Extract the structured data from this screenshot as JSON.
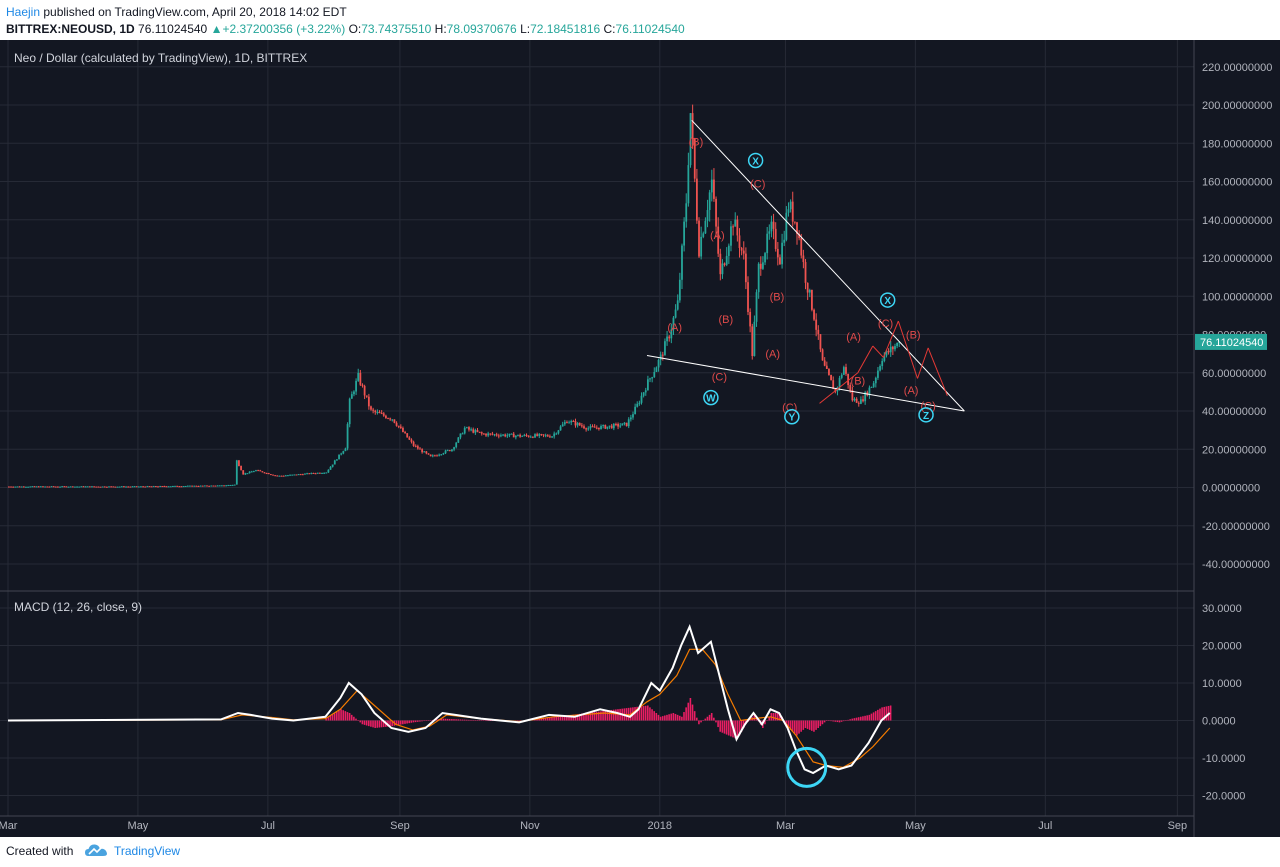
{
  "header": {
    "author": "Haejin",
    "published_text": " published on TradingView.com, April 20, 2018 14:02 EDT",
    "symbol": "BITTREX:NEOUSD, 1D",
    "last": "76.11024540",
    "change": "+2.37200356 (+3.22%)",
    "o_label": "O:",
    "o_value": "73.74375510",
    "h_label": "H:",
    "h_value": "78.09370676",
    "l_label": "L:",
    "l_value": "72.18451816",
    "c_label": "C:",
    "c_value": "76.11024540"
  },
  "footer": {
    "created_with": "Created with",
    "brand": "TradingView"
  },
  "colors": {
    "background": "#131722",
    "up": "#26a69a",
    "down": "#ef5350",
    "wave_label": "#e04a4a",
    "circle_label": "#3dd6f5",
    "macd_line": "#ffffff",
    "signal_line": "#f57c00",
    "histogram": "#e91e63"
  },
  "chart_data": [
    {
      "type": "candlestick",
      "title": "Neo / Dollar (calculated by TradingView), 1D, BITTREX",
      "ylim": [
        -50,
        230
      ],
      "y_ticks": [
        "220.00000000",
        "200.00000000",
        "180.00000000",
        "160.00000000",
        "140.00000000",
        "120.00000000",
        "100.00000000",
        "80.00000000",
        "60.00000000",
        "40.00000000",
        "20.00000000",
        "0.00000000",
        "-20.00000000",
        "-40.00000000"
      ],
      "y_tick_values": [
        220,
        200,
        180,
        160,
        140,
        120,
        100,
        80,
        60,
        40,
        20,
        0,
        -20,
        -40
      ],
      "last_price_label": "76.11024540",
      "last_price": 76.11,
      "x_ticks": [
        "Mar",
        "May",
        "Jul",
        "Sep",
        "Nov",
        "2018",
        "Mar",
        "May",
        "Jul",
        "Sep"
      ],
      "x_tick_days": [
        0,
        61,
        122,
        184,
        245,
        306,
        365,
        426,
        487,
        549
      ],
      "price_path": [
        [
          0,
          0.5
        ],
        [
          60,
          0.5
        ],
        [
          100,
          1
        ],
        [
          106,
          1.5
        ],
        [
          107,
          14
        ],
        [
          110,
          7
        ],
        [
          116,
          9
        ],
        [
          126,
          6
        ],
        [
          149,
          8
        ],
        [
          158,
          21
        ],
        [
          160,
          45
        ],
        [
          164,
          58
        ],
        [
          170,
          40
        ],
        [
          180,
          36
        ],
        [
          190,
          22
        ],
        [
          198,
          16
        ],
        [
          208,
          20
        ],
        [
          214,
          31
        ],
        [
          222,
          28
        ],
        [
          240,
          27
        ],
        [
          255,
          27
        ],
        [
          262,
          35
        ],
        [
          272,
          31
        ],
        [
          283,
          32
        ],
        [
          290,
          33
        ],
        [
          295,
          43
        ],
        [
          300,
          55
        ],
        [
          306,
          68
        ],
        [
          310,
          80
        ],
        [
          314,
          96
        ],
        [
          318,
          150
        ],
        [
          320,
          196
        ],
        [
          324,
          125
        ],
        [
          330,
          160
        ],
        [
          334,
          110
        ],
        [
          340,
          140
        ],
        [
          345,
          120
        ],
        [
          349,
          70
        ],
        [
          352,
          115
        ],
        [
          358,
          135
        ],
        [
          362,
          120
        ],
        [
          366,
          148
        ],
        [
          370,
          137
        ],
        [
          374,
          110
        ],
        [
          378,
          90
        ],
        [
          382,
          65
        ],
        [
          388,
          50
        ],
        [
          392,
          63
        ],
        [
          396,
          46
        ],
        [
          400,
          45
        ],
        [
          406,
          55
        ],
        [
          410,
          68
        ],
        [
          414,
          72
        ],
        [
          418,
          76
        ]
      ],
      "trendlines": [
        {
          "from": [
            321,
            192
          ],
          "to": [
            449,
            40
          ]
        },
        {
          "from": [
            300,
            69
          ],
          "to": [
            449,
            40
          ]
        },
        {
          "from": [
            381,
            44
          ],
          "to": [
            399,
            60
          ]
        },
        {
          "from": [
            399,
            60
          ],
          "to": [
            406,
            74
          ]
        },
        {
          "from": [
            406,
            74
          ],
          "to": [
            411,
            68
          ]
        },
        {
          "from": [
            411,
            68
          ],
          "to": [
            418,
            87
          ]
        },
        {
          "from": [
            418,
            87
          ],
          "to": [
            427,
            57
          ]
        },
        {
          "from": [
            427,
            57
          ],
          "to": [
            432,
            73
          ]
        },
        {
          "from": [
            432,
            73
          ],
          "to": [
            441,
            48
          ]
        }
      ],
      "wave_labels": [
        {
          "text": "(B)",
          "day": 323,
          "price": 181
        },
        {
          "text": "(C)",
          "day": 352,
          "price": 159
        },
        {
          "text": "(A)",
          "day": 333,
          "price": 132
        },
        {
          "text": "(A)",
          "day": 313,
          "price": 84
        },
        {
          "text": "(B)",
          "day": 337,
          "price": 88
        },
        {
          "text": "(C)",
          "day": 334,
          "price": 58
        },
        {
          "text": "(B)",
          "day": 361,
          "price": 100
        },
        {
          "text": "(A)",
          "day": 359,
          "price": 70
        },
        {
          "text": "(C)",
          "day": 367,
          "price": 42
        },
        {
          "text": "(A)",
          "day": 397,
          "price": 79
        },
        {
          "text": "(B)",
          "day": 399,
          "price": 56
        },
        {
          "text": "(C)",
          "day": 412,
          "price": 86
        },
        {
          "text": "(B)",
          "day": 425,
          "price": 80
        },
        {
          "text": "(A)",
          "day": 424,
          "price": 51
        },
        {
          "text": "(C)",
          "day": 432,
          "price": 43
        }
      ],
      "circle_labels": [
        {
          "text": "X",
          "day": 351,
          "price": 171
        },
        {
          "text": "W",
          "day": 330,
          "price": 47
        },
        {
          "text": "Y",
          "day": 368,
          "price": 37
        },
        {
          "text": "X",
          "day": 413,
          "price": 98
        },
        {
          "text": "Z",
          "day": 431,
          "price": 38
        }
      ]
    },
    {
      "type": "line",
      "title": "MACD (12, 26, close, 9)",
      "ylim": [
        -22,
        33
      ],
      "y_ticks": [
        "30.0000",
        "20.0000",
        "10.0000",
        "0.0000",
        "-10.0000",
        "-20.0000"
      ],
      "y_tick_values": [
        30,
        20,
        10,
        0,
        -10,
        -20
      ],
      "series": [
        {
          "name": "MACD",
          "values": [
            [
              0,
              0
            ],
            [
              100,
              0.3
            ],
            [
              108,
              2
            ],
            [
              114,
              1.5
            ],
            [
              124,
              0.5
            ],
            [
              134,
              0
            ],
            [
              149,
              1
            ],
            [
              156,
              6
            ],
            [
              160,
              10
            ],
            [
              166,
              7
            ],
            [
              172,
              2
            ],
            [
              180,
              -2
            ],
            [
              188,
              -3
            ],
            [
              196,
              -2
            ],
            [
              204,
              2
            ],
            [
              210,
              1.5
            ],
            [
              222,
              0.5
            ],
            [
              240,
              -0.5
            ],
            [
              254,
              1.5
            ],
            [
              266,
              1
            ],
            [
              278,
              3
            ],
            [
              286,
              2
            ],
            [
              292,
              1
            ],
            [
              296,
              3
            ],
            [
              302,
              10
            ],
            [
              306,
              8
            ],
            [
              312,
              14
            ],
            [
              316,
              20
            ],
            [
              320,
              25
            ],
            [
              324,
              18
            ],
            [
              330,
              21
            ],
            [
              334,
              12
            ],
            [
              338,
              3
            ],
            [
              342,
              -5
            ],
            [
              346,
              -1
            ],
            [
              350,
              2
            ],
            [
              354,
              -1
            ],
            [
              358,
              3
            ],
            [
              362,
              2
            ],
            [
              366,
              -2
            ],
            [
              370,
              -8
            ],
            [
              374,
              -13
            ],
            [
              378,
              -14
            ],
            [
              384,
              -12
            ],
            [
              390,
              -13
            ],
            [
              396,
              -12
            ],
            [
              404,
              -6
            ],
            [
              410,
              0
            ],
            [
              414,
              2
            ]
          ]
        },
        {
          "name": "Signal",
          "values": [
            [
              0,
              0
            ],
            [
              100,
              0.2
            ],
            [
              110,
              1.5
            ],
            [
              124,
              0.8
            ],
            [
              134,
              0.2
            ],
            [
              149,
              0.5
            ],
            [
              156,
              3
            ],
            [
              164,
              8
            ],
            [
              172,
              4
            ],
            [
              182,
              -1
            ],
            [
              190,
              -2.5
            ],
            [
              198,
              -1.5
            ],
            [
              206,
              1.5
            ],
            [
              222,
              0.5
            ],
            [
              240,
              -0.3
            ],
            [
              256,
              1
            ],
            [
              280,
              2
            ],
            [
              292,
              1.5
            ],
            [
              300,
              5
            ],
            [
              306,
              7
            ],
            [
              314,
              12
            ],
            [
              320,
              19
            ],
            [
              326,
              19
            ],
            [
              332,
              15
            ],
            [
              338,
              7
            ],
            [
              344,
              0
            ],
            [
              350,
              0.5
            ],
            [
              358,
              1
            ],
            [
              364,
              0
            ],
            [
              370,
              -4
            ],
            [
              378,
              -11
            ],
            [
              384,
              -12
            ],
            [
              392,
              -12.5
            ],
            [
              400,
              -10
            ],
            [
              406,
              -7
            ],
            [
              414,
              -2
            ]
          ]
        },
        {
          "name": "Histogram",
          "values": [
            [
              149,
              0.5
            ],
            [
              156,
              3
            ],
            [
              160,
              2
            ],
            [
              166,
              -1
            ],
            [
              172,
              -2
            ],
            [
              180,
              -1.5
            ],
            [
              190,
              -0.5
            ],
            [
              204,
              0.5
            ],
            [
              222,
              0
            ],
            [
              240,
              -0.2
            ],
            [
              300,
              4
            ],
            [
              306,
              1
            ],
            [
              312,
              2
            ],
            [
              316,
              1
            ],
            [
              320,
              6
            ],
            [
              324,
              -1
            ],
            [
              330,
              2
            ],
            [
              334,
              -3
            ],
            [
              338,
              -4
            ],
            [
              342,
              -5
            ],
            [
              346,
              -1
            ],
            [
              350,
              1.5
            ],
            [
              354,
              -2
            ],
            [
              358,
              2
            ],
            [
              362,
              2
            ],
            [
              366,
              -2
            ],
            [
              370,
              -4
            ],
            [
              374,
              -2
            ],
            [
              378,
              -3
            ],
            [
              384,
              0
            ],
            [
              390,
              -0.5
            ],
            [
              396,
              0.5
            ],
            [
              404,
              1.5
            ],
            [
              410,
              3.5
            ],
            [
              414,
              4
            ]
          ]
        }
      ],
      "highlight_circle": {
        "day": 375,
        "value": -12.5
      }
    }
  ]
}
